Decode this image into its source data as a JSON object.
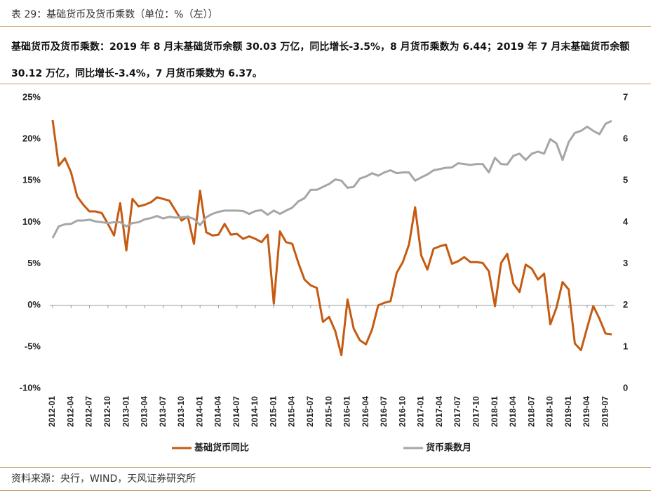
{
  "header": {
    "title": "表 29：基础货币及货币乘数（单位：%（左））",
    "description": "基础货币及货币乘数：2019 年 8 月末基础货币余额 30.03 万亿，同比增长-3.5%，8 月货币乘数为 6.44；2019 年 7 月末基础货币余额 30.12 万亿，同比增长-3.4%，7 月货币乘数为 6.37。"
  },
  "chart_data": {
    "type": "line",
    "categories": [
      "2012-01",
      null,
      null,
      "2012-04",
      null,
      null,
      "2012-07",
      null,
      null,
      "2012-10",
      null,
      null,
      "2013-01",
      null,
      null,
      "2013-04",
      null,
      null,
      "2013-07",
      null,
      null,
      "2013-10",
      null,
      null,
      "2014-01",
      null,
      null,
      "2014-04",
      null,
      null,
      "2014-07",
      null,
      null,
      "2014-10",
      null,
      null,
      "2015-01",
      null,
      null,
      "2015-04",
      null,
      null,
      "2015-07",
      null,
      null,
      "2015-10",
      null,
      null,
      "2016-01",
      null,
      null,
      "2016-04",
      null,
      null,
      "2016-07",
      null,
      null,
      "2016-10",
      null,
      null,
      "2017-01",
      null,
      null,
      "2017-04",
      null,
      null,
      "2017-07",
      null,
      null,
      "2017-10",
      null,
      null,
      "2018-01",
      null,
      null,
      "2018-04",
      null,
      null,
      "2018-07",
      null,
      null,
      "2018-10",
      null,
      null,
      "2019-01",
      null,
      null,
      "2019-04",
      null,
      null,
      "2019-07",
      null
    ],
    "series": [
      {
        "name": "基础货币同比",
        "color": "#c55a11",
        "values": [
          22.3,
          16.8,
          17.7,
          16.0,
          13.1,
          12.1,
          11.3,
          11.3,
          11.1,
          9.8,
          8.4,
          12.3,
          6.6,
          12.8,
          11.9,
          12.1,
          12.4,
          13.0,
          12.8,
          12.6,
          11.4,
          10.2,
          10.7,
          7.4,
          13.8,
          8.8,
          8.4,
          8.5,
          9.8,
          8.5,
          8.6,
          8.0,
          8.3,
          8.0,
          7.6,
          8.5,
          0.2,
          8.9,
          7.6,
          7.4,
          5.1,
          3.1,
          2.4,
          2.1,
          -2.0,
          -1.4,
          -3.1,
          -6.0,
          0.7,
          -2.8,
          -4.2,
          -4.7,
          -2.9,
          0.0,
          0.3,
          0.5,
          3.9,
          5.2,
          7.3,
          11.8,
          6.0,
          4.3,
          6.8,
          7.1,
          7.3,
          5.0,
          5.3,
          5.8,
          5.2,
          5.2,
          5.1,
          4.1,
          -0.1,
          5.1,
          6.2,
          2.6,
          1.6,
          4.9,
          4.4,
          3.1,
          3.8,
          -2.3,
          -0.3,
          2.8,
          1.9,
          -4.6,
          -5.4,
          -2.7,
          -0.1,
          -1.6,
          -3.4,
          -3.5
        ]
      },
      {
        "name": "货币乘数月",
        "color": "#a6a6a6",
        "axis": "y2",
        "values": [
          3.62,
          3.9,
          3.95,
          3.96,
          4.04,
          4.04,
          4.06,
          4.02,
          4.0,
          3.98,
          4.0,
          4.0,
          3.9,
          3.98,
          4.0,
          4.07,
          4.1,
          4.15,
          4.09,
          4.13,
          4.11,
          4.12,
          4.13,
          4.08,
          3.93,
          4.12,
          4.2,
          4.25,
          4.28,
          4.28,
          4.28,
          4.27,
          4.2,
          4.27,
          4.29,
          4.18,
          4.28,
          4.2,
          4.28,
          4.35,
          4.5,
          4.58,
          4.78,
          4.78,
          4.85,
          4.92,
          5.03,
          5.0,
          4.83,
          4.85,
          5.05,
          5.1,
          5.18,
          5.12,
          5.2,
          5.25,
          5.18,
          5.2,
          5.2,
          5.0,
          5.08,
          5.15,
          5.25,
          5.28,
          5.31,
          5.32,
          5.42,
          5.4,
          5.38,
          5.4,
          5.4,
          5.2,
          5.55,
          5.4,
          5.39,
          5.6,
          5.65,
          5.5,
          5.65,
          5.7,
          5.65,
          6.0,
          5.9,
          5.5,
          5.93,
          6.15,
          6.2,
          6.3,
          6.2,
          6.12,
          6.37,
          6.44
        ]
      }
    ],
    "ylim": [
      -10,
      25
    ],
    "yticks": [
      {
        "value": -10,
        "label": "-10%"
      },
      {
        "value": -5,
        "label": "-5%"
      },
      {
        "value": 0,
        "label": "0%"
      },
      {
        "value": 5,
        "label": "5%"
      },
      {
        "value": 10,
        "label": "10%"
      },
      {
        "value": 15,
        "label": "15%"
      },
      {
        "value": 20,
        "label": "20%"
      },
      {
        "value": 25,
        "label": "25%"
      }
    ],
    "y2lim": [
      0,
      7
    ],
    "y2ticks": [
      0,
      1,
      2,
      3,
      4,
      5,
      6,
      7
    ],
    "legend": "bottom"
  },
  "footer": {
    "source": "资料来源：央行，WIND，天风证券研究所"
  }
}
